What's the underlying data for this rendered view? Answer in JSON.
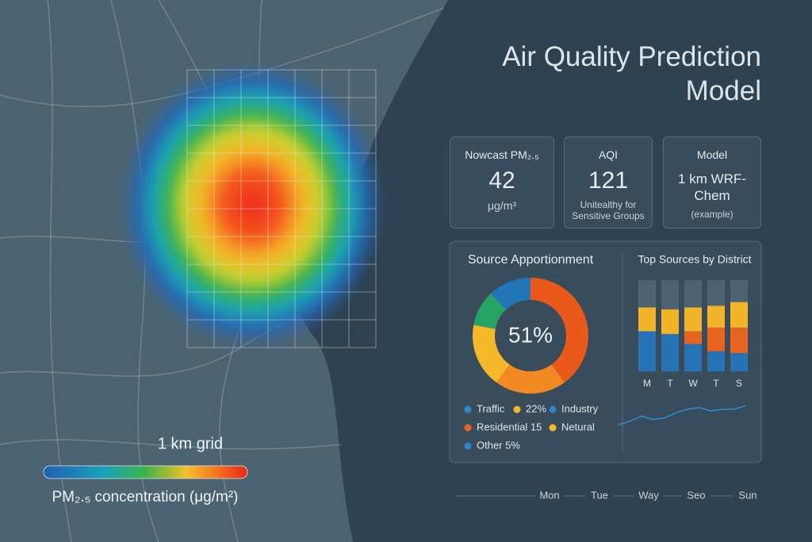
{
  "title": "Air Quality Prediction Model",
  "map": {
    "grid_label": "1 km grid",
    "legend_label": "PM₂.₅ concentration (μg/m²)"
  },
  "cards": [
    {
      "label": "Nowcast PM₂.₅",
      "value": 42,
      "note": "μg/m³"
    },
    {
      "label": "AQI",
      "value": 121,
      "note": "Unitealthy for Sensitive Groups"
    },
    {
      "label": "Model",
      "value": "1 km WRF-Chem",
      "note": "(example)"
    }
  ],
  "chart_data": [
    {
      "type": "donut",
      "title": "Source Apportionment",
      "center_label": "51%",
      "values": [
        40,
        20,
        18,
        10,
        12
      ],
      "colors": [
        "#e8591a",
        "#f28a24",
        "#f5b82a",
        "#27a366",
        "#2276b8"
      ],
      "legend": [
        {
          "label": "Traffic",
          "color": "#2b86d0"
        },
        {
          "label": "22%",
          "color": "#f5b82a"
        },
        {
          "label": "Industry",
          "color": "#2b86d0"
        },
        {
          "label": "Residential 15",
          "color": "#e8641e"
        },
        {
          "label": "Netural",
          "color": "#f5b82a"
        },
        {
          "label": "Other   5%",
          "color": "#2b86d0"
        }
      ]
    },
    {
      "type": "stacked_bar",
      "title": "Top Sources by District",
      "categories": [
        "M",
        "T",
        "W",
        "T",
        "S"
      ],
      "ylim": [
        0,
        100
      ],
      "series": [
        {
          "color": "#2673b5",
          "values": [
            44,
            41,
            30,
            22,
            20
          ]
        },
        {
          "color": "#e8641e",
          "values": [
            0,
            0,
            14,
            26,
            28
          ]
        },
        {
          "color": "#f2b52a",
          "values": [
            26,
            27,
            26,
            24,
            28
          ]
        },
        {
          "color": "#4e6272",
          "values": [
            30,
            32,
            30,
            28,
            24
          ]
        }
      ]
    },
    {
      "type": "line",
      "values": [
        3,
        4,
        5.5,
        4.5,
        5,
        6.5,
        7.5,
        8,
        7,
        7.5,
        7.5,
        8.5
      ],
      "ylim": [
        0,
        10
      ],
      "color": "#2d8fd6"
    }
  ],
  "timeline": [
    "Mon",
    "Tue",
    "Way",
    "Seo",
    "Sun"
  ]
}
